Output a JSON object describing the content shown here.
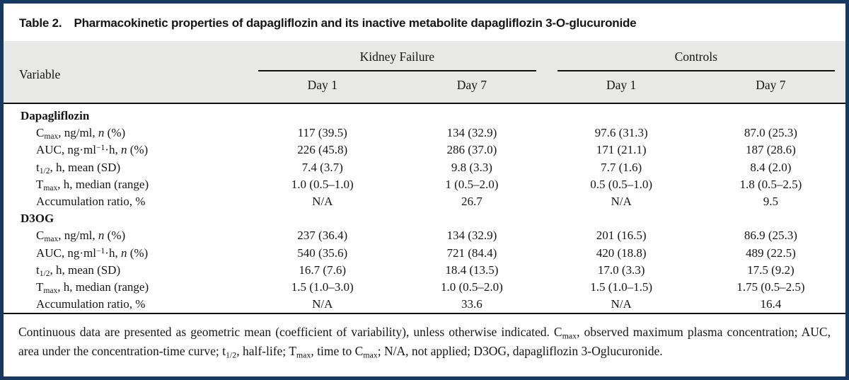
{
  "title": {
    "label": "Table 2.",
    "caption": "Pharmacokinetic properties of dapagliflozin and its inactive metabolite dapagliflozin 3-O-glucuronide"
  },
  "header": {
    "variable": "Variable",
    "groups": [
      {
        "label": "Kidney Failure"
      },
      {
        "label": "Controls"
      }
    ],
    "subcols": [
      "Day 1",
      "Day 7",
      "Day 1",
      "Day 7"
    ]
  },
  "table": {
    "groups": [
      {
        "section": "Dapagliflozin",
        "rows": [
          {
            "label": "C~max~, ng/ml, *n* (%)",
            "values": [
              "117 (39.5)",
              "134 (32.9)",
              "97.6 (31.3)",
              "87.0 (25.3)"
            ]
          },
          {
            "label": "AUC, ng·ml^−1^·h, *n* (%)",
            "values": [
              "226 (45.8)",
              "286 (37.0)",
              "171 (21.1)",
              "187 (28.6)"
            ]
          },
          {
            "label": "t~1/2~, h, mean (SD)",
            "values": [
              "7.4 (3.7)",
              "9.8 (3.3)",
              "7.7 (1.6)",
              "8.4 (2.0)"
            ]
          },
          {
            "label": "T~max~, h, median (range)",
            "values": [
              "1.0 (0.5–1.0)",
              "1 (0.5–2.0)",
              "0.5 (0.5–1.0)",
              "1.8 (0.5–2.5)"
            ]
          },
          {
            "label": "Accumulation ratio, %",
            "values": [
              "N/A",
              "26.7",
              "N/A",
              "9.5"
            ]
          }
        ]
      },
      {
        "section": "D3OG",
        "rows": [
          {
            "label": "C~max~, ng/ml, *n* (%)",
            "values": [
              "237 (36.4)",
              "134 (32.9)",
              "201 (16.5)",
              "86.9 (25.3)"
            ]
          },
          {
            "label": "AUC, ng·ml^−1^·h, *n* (%)",
            "values": [
              "540 (35.6)",
              "721 (84.4)",
              "420 (18.8)",
              "489 (22.5)"
            ]
          },
          {
            "label": "t~1/2~, h, mean (SD)",
            "values": [
              "16.7 (7.6)",
              "18.4 (13.5)",
              "17.0 (3.3)",
              "17.5 (9.2)"
            ]
          },
          {
            "label": "T~max~, h, median (range)",
            "values": [
              "1.5 (1.0–3.0)",
              "1.0 (0.5–2.0)",
              "1.5 (1.0–1.5)",
              "1.75 (0.5–2.5)"
            ]
          },
          {
            "label": "Accumulation ratio, %",
            "values": [
              "N/A",
              "33.6",
              "N/A",
              "16.4"
            ]
          }
        ]
      }
    ]
  },
  "footnote": "Continuous data are presented as geometric mean (coefficient of variability), unless otherwise indicated. C~max~, observed maximum plasma concentration; AUC, area under the concentration-time curve; t~1/2~, half-life; T~max~, time to C~max~; N/A, not applied; D3OG, dapagliflozin 3-Oglucuronide.",
  "colors": {
    "border": "#17395f",
    "header_bg": "#e8e8e6",
    "rule": "#111111",
    "text": "#151515"
  }
}
